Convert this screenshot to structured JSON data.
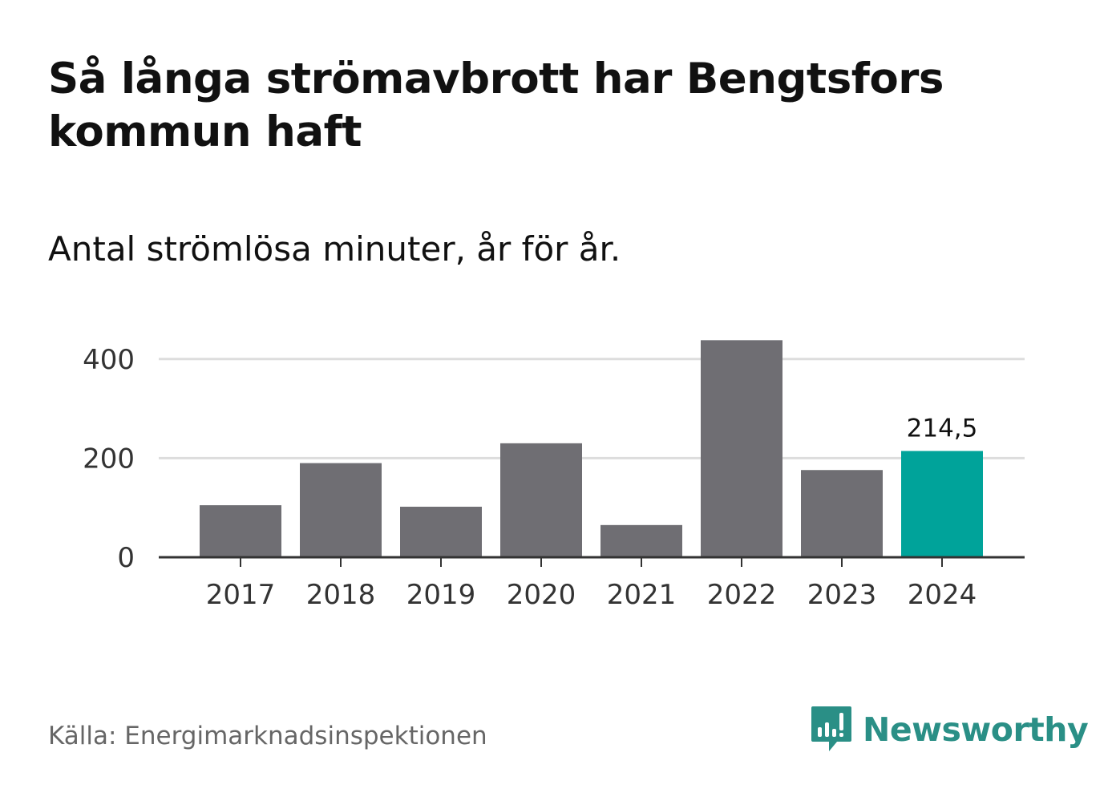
{
  "title": "Så långa strömavbrott har Bengtsfors kommun haft",
  "subtitle": "Antal strömlösa minuter, år för år.",
  "source": "Källa: Energimarknadsinspektionen",
  "brand": {
    "name": "Newsworthy",
    "icon": "newsworthy-logo-icon",
    "color": "#2a8f86"
  },
  "colors": {
    "bar": "#6f6e73",
    "highlight": "#00a39a",
    "grid": "#dddddd",
    "axis": "#333333"
  },
  "chart_data": {
    "type": "bar",
    "title": "Så långa strömavbrott har Bengtsfors kommun haft",
    "subtitle": "Antal strömlösa minuter, år för år.",
    "xlabel": "",
    "ylabel": "",
    "categories": [
      "2017",
      "2018",
      "2019",
      "2020",
      "2021",
      "2022",
      "2023",
      "2024"
    ],
    "values": [
      105,
      190,
      102,
      230,
      65,
      438,
      176,
      214.5
    ],
    "highlight_index": 7,
    "data_labels": [
      {
        "index": 7,
        "text": "214,5"
      }
    ],
    "y_ticks": [
      0,
      200,
      400
    ],
    "y_tick_labels": [
      "0",
      "200",
      "400"
    ],
    "ylim": [
      0,
      450
    ],
    "grid": true
  }
}
